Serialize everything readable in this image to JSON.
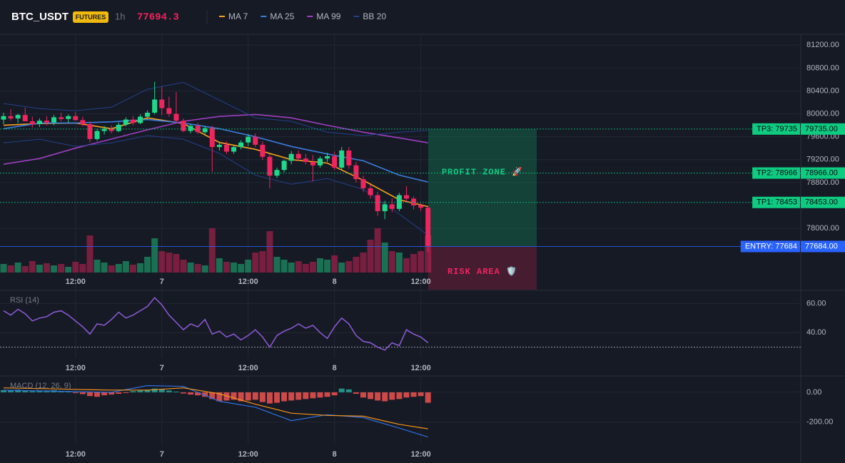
{
  "header": {
    "symbol": "BTC_USDT",
    "badge": "FUTURES",
    "interval": "1h",
    "price": 77694.3
  },
  "chart_data": [
    {
      "type": "candlestick",
      "categories": [
        null,
        null,
        null,
        null,
        null,
        null,
        null,
        null,
        null,
        null,
        "12:00",
        null,
        null,
        null,
        null,
        null,
        null,
        null,
        null,
        null,
        null,
        null,
        "7",
        null,
        null,
        null,
        null,
        null,
        null,
        null,
        null,
        null,
        null,
        null,
        "12:00",
        null,
        null,
        null,
        null,
        null,
        null,
        null,
        null,
        null,
        null,
        null,
        "8",
        null,
        null,
        null,
        null,
        null,
        null,
        null,
        null,
        null,
        null,
        null,
        "12:00",
        null
      ],
      "open": [
        79900,
        79960,
        79920,
        79980,
        79870,
        79820,
        79880,
        79850,
        79940,
        79910,
        79960,
        79890,
        79820,
        79560,
        79700,
        79740,
        79700,
        79810,
        79900,
        79840,
        79950,
        80020,
        80250,
        80100,
        80000,
        79880,
        79700,
        79790,
        79680,
        79750,
        79420,
        79460,
        79340,
        79420,
        79500,
        79600,
        79460,
        79250,
        78920,
        79020,
        79180,
        79300,
        79220,
        79160,
        79100,
        79220,
        79260,
        79060,
        79360,
        79100,
        78860,
        78700,
        78580,
        78300,
        78420,
        78340,
        78580,
        78520,
        78400,
        78360
      ],
      "high": [
        80020,
        80080,
        80000,
        80110,
        79950,
        79920,
        79960,
        79980,
        80020,
        79990,
        80030,
        79950,
        79870,
        79740,
        79790,
        79800,
        79850,
        79940,
        79960,
        79990,
        80060,
        80560,
        80470,
        80300,
        80380,
        79920,
        79820,
        79840,
        79790,
        79790,
        79500,
        79520,
        79460,
        79540,
        79650,
        79660,
        79520,
        79300,
        79060,
        79200,
        79350,
        79360,
        79300,
        79280,
        79260,
        79320,
        79340,
        79420,
        79420,
        79160,
        78920,
        78760,
        78640,
        78480,
        78520,
        78620,
        78740,
        78560,
        78440,
        78400
      ],
      "low": [
        79820,
        79880,
        79840,
        79900,
        79760,
        79770,
        79800,
        79800,
        79870,
        79840,
        79880,
        79780,
        79500,
        79530,
        79640,
        79660,
        79680,
        79780,
        79800,
        79820,
        79900,
        79990,
        79980,
        79950,
        79850,
        79680,
        79660,
        79650,
        79640,
        78990,
        79360,
        79300,
        79300,
        79380,
        79440,
        79420,
        79200,
        78700,
        78880,
        78980,
        79120,
        79180,
        79120,
        78820,
        79060,
        79160,
        79020,
        79020,
        79040,
        78800,
        78640,
        78520,
        78220,
        78160,
        78280,
        78300,
        78460,
        78330,
        78300,
        77580
      ],
      "close": [
        79960,
        79920,
        79980,
        79870,
        79820,
        79880,
        79850,
        79940,
        79910,
        79960,
        79890,
        79820,
        79560,
        79700,
        79740,
        79700,
        79810,
        79900,
        79840,
        79950,
        80020,
        80250,
        80100,
        80000,
        79880,
        79700,
        79790,
        79680,
        79750,
        79420,
        79460,
        79340,
        79420,
        79500,
        79600,
        79460,
        79250,
        78920,
        79020,
        79180,
        79300,
        79220,
        79160,
        79100,
        79220,
        79260,
        79060,
        79360,
        79100,
        78860,
        78700,
        78580,
        78300,
        78420,
        78340,
        78580,
        78520,
        78400,
        78360,
        77694.3
      ],
      "volume": [
        12,
        10,
        14,
        9,
        16,
        11,
        13,
        10,
        12,
        8,
        15,
        12,
        52,
        18,
        14,
        10,
        12,
        16,
        11,
        13,
        22,
        48,
        30,
        28,
        26,
        18,
        14,
        12,
        10,
        62,
        20,
        15,
        14,
        12,
        18,
        28,
        30,
        58,
        22,
        18,
        14,
        16,
        12,
        15,
        20,
        18,
        24,
        14,
        16,
        22,
        28,
        46,
        62,
        42,
        30,
        28,
        20,
        26,
        30,
        52
      ],
      "volume_lim": [
        0,
        100
      ],
      "up_color": "#1ed98a",
      "down_color": "#f0245e",
      "overlays": [
        {
          "name": "MA 7",
          "color": "#f7a21b",
          "x": [
            0,
            5,
            10,
            15,
            20,
            25,
            30,
            35,
            40,
            45,
            50,
            55,
            59
          ],
          "values": [
            79800,
            79830,
            79840,
            79740,
            79930,
            79830,
            79500,
            79380,
            79200,
            79140,
            78840,
            78500,
            78380
          ]
        },
        {
          "name": "MA 25",
          "color": "#3b7ddd",
          "x": [
            0,
            5,
            10,
            15,
            20,
            25,
            30,
            35,
            40,
            45,
            50,
            55,
            59
          ],
          "values": [
            79740,
            79840,
            79840,
            79860,
            79900,
            79840,
            79740,
            79600,
            79430,
            79300,
            79180,
            78930,
            78810
          ]
        },
        {
          "name": "MA 99",
          "color": "#9c3fc0",
          "x": [
            0,
            5,
            10,
            15,
            20,
            25,
            30,
            35,
            40,
            45,
            50,
            55,
            59
          ],
          "values": [
            79120,
            79220,
            79400,
            79560,
            79720,
            79870,
            79955,
            79990,
            79930,
            79800,
            79680,
            79580,
            79494
          ]
        },
        {
          "name": "BB 20",
          "color": "#23408a",
          "x": [
            0,
            5,
            10,
            15,
            20,
            25,
            30,
            35,
            40,
            45,
            50,
            55,
            59
          ],
          "values": [
            80180,
            80090,
            80055,
            80117,
            80430,
            80550,
            80240,
            79930,
            79870,
            79680,
            79620,
            79680,
            79710
          ],
          "lower": [
            79494,
            79557,
            79430,
            79494,
            79620,
            79557,
            79310,
            78930,
            78770,
            78870,
            78680,
            78250,
            77880
          ]
        }
      ],
      "levels": [
        {
          "label": "TP3: 79735",
          "value": 79735,
          "value_label": "79735.00",
          "color": "#0ecb81"
        },
        {
          "label": "TP2: 78966",
          "value": 78966,
          "value_label": "78966.00",
          "color": "#0ecb81"
        },
        {
          "label": "TP1: 78453",
          "value": 78453,
          "value_label": "78453.00",
          "color": "#0ecb81"
        },
        {
          "label": "ENTRY: 77684",
          "value": 77684,
          "value_label": "77684.00",
          "color": "#2962ff"
        }
      ],
      "zones": [
        {
          "label": "PROFIT ZONE 🚀",
          "from": 77684,
          "to": 79735,
          "color": "#0ecb81"
        },
        {
          "label": "RISK AREA 🛡️",
          "from": 76930,
          "to": 77684,
          "color": "#f0245e"
        }
      ],
      "ylim": [
        76930,
        81390
      ],
      "yticks": [
        {
          "value": 81200,
          "label": "81200.00"
        },
        {
          "value": 80800,
          "label": "80800.00"
        },
        {
          "value": 80400,
          "label": "80400.00"
        },
        {
          "value": 80000,
          "label": "80000.00"
        },
        {
          "value": 79600,
          "label": "79600.00"
        },
        {
          "value": 79200,
          "label": "79200.00"
        },
        {
          "value": 78800,
          "label": "78800.00"
        },
        {
          "value": 78000,
          "label": "78000.00"
        }
      ],
      "grid": true
    },
    {
      "type": "line",
      "title": "RSI (14)",
      "categories": [
        null,
        null,
        null,
        null,
        null,
        null,
        null,
        null,
        null,
        null,
        "12:00",
        null,
        null,
        null,
        null,
        null,
        null,
        null,
        null,
        null,
        null,
        null,
        "7",
        null,
        null,
        null,
        null,
        null,
        null,
        null,
        null,
        null,
        null,
        null,
        "12:00",
        null,
        null,
        null,
        null,
        null,
        null,
        null,
        null,
        null,
        null,
        null,
        "8",
        null,
        null,
        null,
        null,
        null,
        null,
        null,
        null,
        null,
        null,
        null,
        "12:00",
        null
      ],
      "series": [
        {
          "color": "#8e5bd6",
          "values": [
            55,
            52,
            56,
            53,
            48,
            50,
            51,
            54,
            55,
            52,
            48,
            44,
            39,
            46,
            45,
            49,
            54,
            50,
            52,
            55,
            58,
            64,
            59,
            52,
            47,
            42,
            46,
            44,
            49,
            39,
            41,
            37,
            39,
            35,
            38,
            42,
            37,
            30,
            38,
            41,
            43,
            46,
            43,
            45,
            40,
            36,
            44,
            50,
            46,
            38,
            34,
            33,
            30,
            28,
            33,
            31,
            42,
            39,
            37,
            33
          ]
        }
      ],
      "reference_line": 30,
      "ylim": [
        22.5,
        68.5
      ],
      "yticks": [
        {
          "value": 60,
          "label": "60.00"
        },
        {
          "value": 40,
          "label": "40.00"
        }
      ],
      "grid": true
    },
    {
      "type": "macd",
      "title": "MACD (12, 26, 9)",
      "categories": [
        null,
        null,
        null,
        null,
        null,
        null,
        null,
        null,
        null,
        null,
        "12:00",
        null,
        null,
        null,
        null,
        null,
        null,
        null,
        null,
        null,
        null,
        null,
        "7",
        null,
        null,
        null,
        null,
        null,
        null,
        null,
        null,
        null,
        null,
        null,
        "12:00",
        null,
        null,
        null,
        null,
        null,
        null,
        null,
        null,
        null,
        null,
        null,
        "8",
        null,
        null,
        null,
        null,
        null,
        null,
        null,
        null,
        null,
        null,
        null,
        "12:00",
        null
      ],
      "histogram": [
        15,
        12,
        18,
        10,
        8,
        10,
        12,
        14,
        8,
        6,
        -5,
        -12,
        -25,
        -30,
        -20,
        -15,
        -10,
        -5,
        8,
        12,
        18,
        25,
        22,
        12,
        5,
        -8,
        -15,
        -20,
        -30,
        -45,
        -60,
        -55,
        -50,
        -60,
        -55,
        -50,
        -65,
        -75,
        -70,
        -60,
        -55,
        -50,
        -45,
        -40,
        -35,
        -30,
        -20,
        25,
        20,
        -10,
        -35,
        -45,
        -55,
        -60,
        -50,
        -45,
        -35,
        -30,
        -25,
        -70
      ],
      "up_color": "#26a69a",
      "down_color": "#ef5350",
      "series": [
        {
          "color": "#2f6fe0",
          "x": [
            0,
            5,
            10,
            15,
            20,
            25,
            30,
            35,
            40,
            45,
            50,
            55,
            59
          ],
          "values": [
            15,
            10,
            5,
            0,
            45,
            40,
            -60,
            -100,
            -190,
            -150,
            -170,
            -240,
            -300
          ]
        },
        {
          "color": "#f7931a",
          "x": [
            0,
            5,
            10,
            15,
            20,
            25,
            30,
            35,
            40,
            45,
            50,
            55,
            59
          ],
          "values": [
            30,
            25,
            20,
            15,
            15,
            30,
            -10,
            -80,
            -140,
            -155,
            -160,
            -215,
            -245
          ]
        }
      ],
      "ylim": [
        -345,
        105
      ],
      "yticks": [
        {
          "value": 0,
          "label": "0.00"
        },
        {
          "value": -200,
          "label": "-200.00"
        }
      ],
      "grid": true
    }
  ]
}
